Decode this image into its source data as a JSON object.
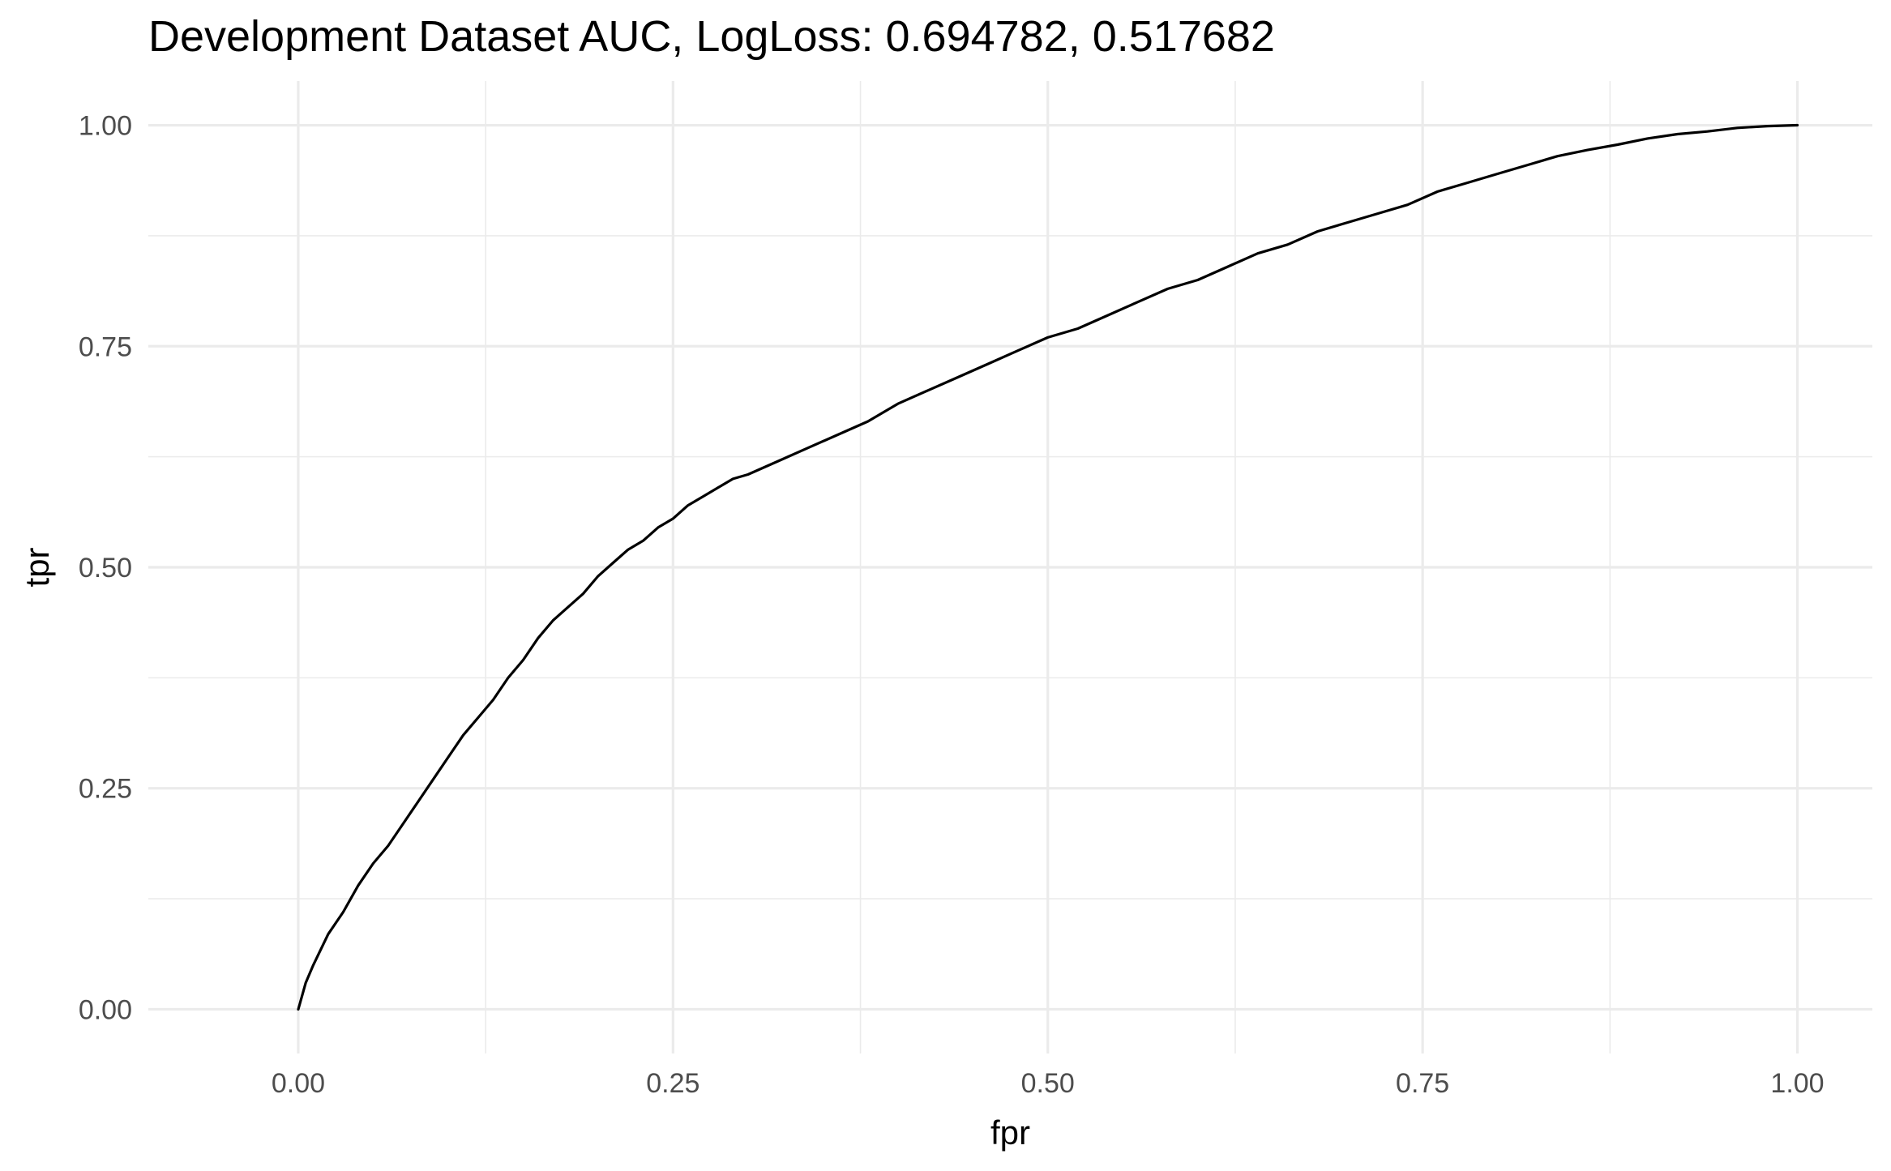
{
  "chart_data": {
    "type": "line",
    "title": "Development Dataset AUC, LogLoss: 0.694782, 0.517682",
    "xlabel": "fpr",
    "ylabel": "tpr",
    "xlim": [
      -0.1,
      1.05
    ],
    "ylim": [
      -0.05,
      1.05
    ],
    "grid": true,
    "legend": "none",
    "x_ticks": [
      0.0,
      0.25,
      0.5,
      0.75,
      1.0
    ],
    "x_tick_labels": [
      "0.00",
      "0.25",
      "0.50",
      "0.75",
      "1.00"
    ],
    "y_ticks": [
      0.0,
      0.25,
      0.5,
      0.75,
      1.0
    ],
    "y_tick_labels": [
      "0.00",
      "0.25",
      "0.50",
      "0.75",
      "1.00"
    ],
    "line_color": "#000000",
    "grid_color": "#ebebeb",
    "series": [
      {
        "x": [
          0.0,
          0.005,
          0.01,
          0.02,
          0.03,
          0.04,
          0.05,
          0.06,
          0.07,
          0.08,
          0.09,
          0.1,
          0.11,
          0.12,
          0.13,
          0.14,
          0.15,
          0.16,
          0.17,
          0.18,
          0.19,
          0.2,
          0.21,
          0.22,
          0.23,
          0.24,
          0.25,
          0.26,
          0.27,
          0.28,
          0.29,
          0.3,
          0.32,
          0.34,
          0.36,
          0.38,
          0.4,
          0.42,
          0.44,
          0.46,
          0.48,
          0.5,
          0.52,
          0.54,
          0.56,
          0.58,
          0.6,
          0.62,
          0.64,
          0.66,
          0.68,
          0.7,
          0.72,
          0.74,
          0.76,
          0.78,
          0.8,
          0.82,
          0.84,
          0.86,
          0.88,
          0.9,
          0.92,
          0.94,
          0.96,
          0.98,
          1.0
        ],
        "y": [
          0.0,
          0.03,
          0.05,
          0.085,
          0.11,
          0.14,
          0.165,
          0.185,
          0.21,
          0.235,
          0.26,
          0.285,
          0.31,
          0.33,
          0.35,
          0.375,
          0.395,
          0.42,
          0.44,
          0.455,
          0.47,
          0.49,
          0.505,
          0.52,
          0.53,
          0.545,
          0.555,
          0.57,
          0.58,
          0.59,
          0.6,
          0.605,
          0.62,
          0.635,
          0.65,
          0.665,
          0.685,
          0.7,
          0.715,
          0.73,
          0.745,
          0.76,
          0.77,
          0.785,
          0.8,
          0.815,
          0.825,
          0.84,
          0.855,
          0.865,
          0.88,
          0.89,
          0.9,
          0.91,
          0.925,
          0.935,
          0.945,
          0.955,
          0.965,
          0.972,
          0.978,
          0.985,
          0.99,
          0.993,
          0.997,
          0.999,
          1.0
        ]
      }
    ]
  }
}
